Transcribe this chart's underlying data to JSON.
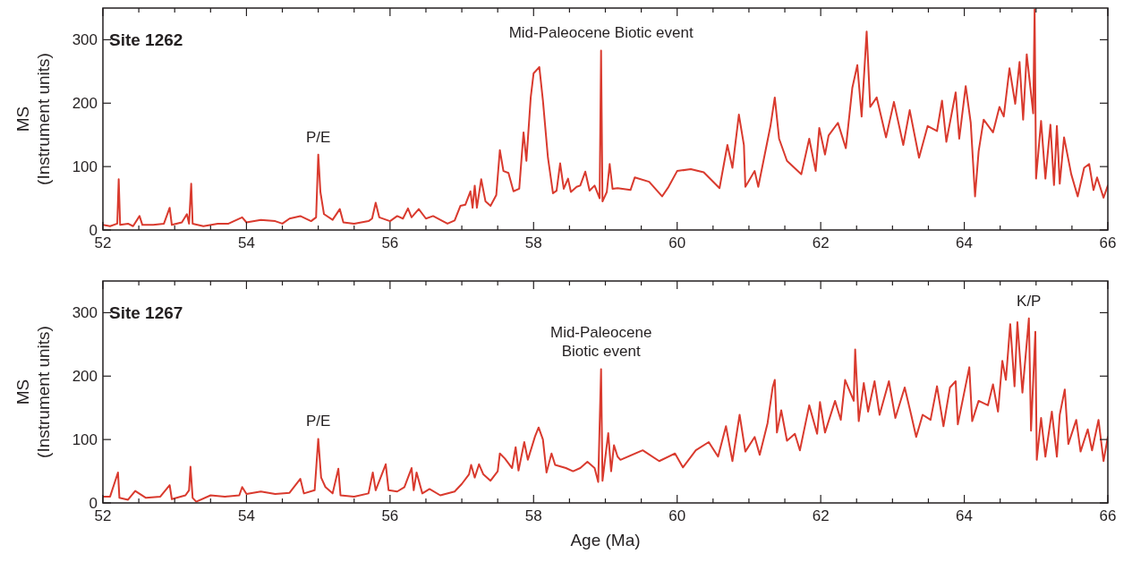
{
  "chart_data": [
    {
      "type": "line",
      "title": "Site 1262",
      "ylabel": "MS\n(Instrument units)",
      "xlim": [
        52,
        66
      ],
      "ylim": [
        0,
        350
      ],
      "xticks": [
        52,
        {
          "value": 52.5,
          "label": null
        },
        {
          "value": 53,
          "label": null
        },
        {
          "value": 53.5,
          "label": null
        },
        54,
        {
          "value": 54.5,
          "label": null
        },
        {
          "value": 55,
          "label": null
        },
        {
          "value": 55.5,
          "label": null
        },
        56,
        {
          "value": 56.5,
          "label": null
        },
        {
          "value": 57,
          "label": null
        },
        {
          "value": 57.5,
          "label": null
        },
        58,
        {
          "value": 58.5,
          "label": null
        },
        {
          "value": 59,
          "label": null
        },
        {
          "value": 59.5,
          "label": null
        },
        60,
        {
          "value": 60.5,
          "label": null
        },
        {
          "value": 61,
          "label": null
        },
        {
          "value": 61.5,
          "label": null
        },
        62,
        {
          "value": 62.5,
          "label": null
        },
        {
          "value": 63,
          "label": null
        },
        {
          "value": 63.5,
          "label": null
        },
        64,
        {
          "value": 64.5,
          "label": null
        },
        {
          "value": 65,
          "label": null
        },
        {
          "value": 65.5,
          "label": null
        },
        66
      ],
      "yticks": [
        0,
        100,
        200,
        300
      ],
      "annotations": [
        {
          "text": "P/E",
          "x": 55.0,
          "y": 119
        },
        {
          "text": "Mid-Paleocene Biotic event",
          "x": 58.94,
          "y": 283
        }
      ],
      "series": [
        {
          "color": "#d93a2e",
          "x": [
            52.0,
            52.1,
            52.2,
            52.22,
            52.24,
            52.35,
            52.42,
            52.51,
            52.55,
            52.7,
            52.85,
            52.93,
            52.96,
            53.1,
            53.17,
            53.2,
            53.23,
            53.25,
            53.4,
            53.6,
            53.75,
            53.94,
            54.0,
            54.2,
            54.4,
            54.5,
            54.6,
            54.75,
            54.9,
            54.97,
            55.0,
            55.03,
            55.08,
            55.2,
            55.3,
            55.35,
            55.5,
            55.7,
            55.75,
            55.8,
            55.85,
            56.0,
            56.1,
            56.18,
            56.25,
            56.3,
            56.4,
            56.5,
            56.6,
            56.8,
            56.9,
            56.98,
            57.05,
            57.12,
            57.15,
            57.18,
            57.21,
            57.27,
            57.33,
            57.4,
            57.48,
            57.53,
            57.58,
            57.65,
            57.72,
            57.8,
            57.86,
            57.9,
            57.96,
            58.0,
            58.08,
            58.13,
            58.2,
            58.27,
            58.32,
            58.37,
            58.42,
            58.48,
            58.52,
            58.6,
            58.65,
            58.72,
            58.78,
            58.85,
            58.92,
            58.94,
            58.96,
            59.02,
            59.06,
            59.1,
            59.17,
            59.35,
            59.41,
            59.61,
            59.79,
            59.88,
            60.0,
            60.19,
            60.37,
            60.59,
            60.7,
            60.77,
            60.86,
            60.93,
            60.95,
            61.08,
            61.13,
            61.22,
            61.3,
            61.36,
            61.42,
            61.53,
            61.73,
            61.84,
            61.93,
            61.98,
            62.06,
            62.11,
            62.24,
            62.35,
            62.44,
            62.51,
            62.57,
            62.64,
            62.69,
            62.78,
            62.91,
            63.02,
            63.15,
            63.24,
            63.37,
            63.49,
            63.62,
            63.69,
            63.75,
            63.88,
            63.93,
            64.02,
            64.09,
            64.15,
            64.2,
            64.27,
            64.4,
            64.49,
            64.55,
            64.63,
            64.71,
            64.77,
            64.82,
            64.87,
            64.96,
            64.98,
            65.0,
            65.07,
            65.13,
            65.2,
            65.25,
            65.29,
            65.33,
            65.39,
            65.49,
            65.58,
            65.67,
            65.74,
            65.8,
            65.85,
            65.94,
            66.0
          ],
          "values": [
            8,
            6,
            10,
            80,
            8,
            10,
            6,
            22,
            8,
            8,
            10,
            35,
            8,
            12,
            25,
            10,
            73,
            10,
            6,
            10,
            10,
            20,
            12,
            16,
            14,
            10,
            18,
            22,
            14,
            20,
            119,
            60,
            25,
            16,
            33,
            12,
            10,
            14,
            18,
            43,
            20,
            14,
            22,
            18,
            34,
            20,
            33,
            18,
            22,
            10,
            15,
            38,
            40,
            61,
            35,
            70,
            35,
            80,
            45,
            38,
            55,
            126,
            93,
            90,
            61,
            65,
            154,
            109,
            209,
            247,
            257,
            204,
            114,
            58,
            62,
            105,
            65,
            81,
            60,
            68,
            70,
            92,
            62,
            70,
            50,
            283,
            45,
            60,
            104,
            65,
            66,
            63,
            83,
            76,
            53,
            68,
            93,
            96,
            91,
            66,
            134,
            98,
            182,
            134,
            68,
            93,
            68,
            119,
            164,
            209,
            144,
            109,
            88,
            144,
            93,
            161,
            119,
            149,
            169,
            129,
            224,
            260,
            179,
            313,
            194,
            209,
            146,
            202,
            134,
            189,
            114,
            164,
            156,
            204,
            139,
            217,
            144,
            227,
            169,
            53,
            124,
            174,
            154,
            194,
            179,
            255,
            199,
            265,
            174,
            277,
            184,
            348,
            81,
            172,
            81,
            166,
            71,
            164,
            73,
            146,
            88,
            53,
            98,
            104,
            63,
            83,
            51,
            70
          ]
        }
      ]
    },
    {
      "type": "line",
      "title": "Site 1267",
      "xlabel": "Age (Ma)",
      "ylabel": "MS\n(Instrument units)",
      "xlim": [
        52,
        66
      ],
      "ylim": [
        0,
        350
      ],
      "xticks": [
        52,
        {
          "value": 52.5,
          "label": null
        },
        {
          "value": 53,
          "label": null
        },
        {
          "value": 53.5,
          "label": null
        },
        54,
        {
          "value": 54.5,
          "label": null
        },
        {
          "value": 55,
          "label": null
        },
        {
          "value": 55.5,
          "label": null
        },
        56,
        {
          "value": 56.5,
          "label": null
        },
        {
          "value": 57,
          "label": null
        },
        {
          "value": 57.5,
          "label": null
        },
        58,
        {
          "value": 58.5,
          "label": null
        },
        {
          "value": 59,
          "label": null
        },
        {
          "value": 59.5,
          "label": null
        },
        60,
        {
          "value": 60.5,
          "label": null
        },
        {
          "value": 61,
          "label": null
        },
        {
          "value": 61.5,
          "label": null
        },
        62,
        {
          "value": 62.5,
          "label": null
        },
        {
          "value": 63,
          "label": null
        },
        {
          "value": 63.5,
          "label": null
        },
        64,
        {
          "value": 64.5,
          "label": null
        },
        {
          "value": 65,
          "label": null
        },
        {
          "value": 65.5,
          "label": null
        },
        66
      ],
      "yticks": [
        0,
        100,
        200,
        300
      ],
      "annotations": [
        {
          "text": "P/E",
          "x": 55.0,
          "y": 101
        },
        {
          "text": "Mid-Paleocene\nBiotic event",
          "x": 58.94,
          "y": 211
        },
        {
          "text": "K/P",
          "x": 64.9,
          "y": 291
        }
      ],
      "series": [
        {
          "color": "#d93a2e",
          "x": [
            52.0,
            52.1,
            52.21,
            52.23,
            52.35,
            52.45,
            52.6,
            52.8,
            52.93,
            52.96,
            53.15,
            53.2,
            53.22,
            53.25,
            53.3,
            53.5,
            53.7,
            53.9,
            53.94,
            54.0,
            54.2,
            54.4,
            54.6,
            54.75,
            54.8,
            54.95,
            55.0,
            55.04,
            55.1,
            55.2,
            55.28,
            55.31,
            55.5,
            55.7,
            55.76,
            55.8,
            55.94,
            55.98,
            56.1,
            56.2,
            56.3,
            56.33,
            56.37,
            56.45,
            56.55,
            56.7,
            56.9,
            57.0,
            57.1,
            57.13,
            57.18,
            57.24,
            57.3,
            57.4,
            57.5,
            57.53,
            57.6,
            57.7,
            57.75,
            57.79,
            57.87,
            57.92,
            58.02,
            58.07,
            58.13,
            58.18,
            58.25,
            58.3,
            58.45,
            58.55,
            58.65,
            58.75,
            58.85,
            58.9,
            58.94,
            58.96,
            59.04,
            59.08,
            59.12,
            59.17,
            59.21,
            59.52,
            59.75,
            59.97,
            60.08,
            60.26,
            60.44,
            60.57,
            60.68,
            60.77,
            60.87,
            60.95,
            61.08,
            61.15,
            61.26,
            61.33,
            61.36,
            61.39,
            61.45,
            61.53,
            61.64,
            61.71,
            61.84,
            61.95,
            61.99,
            62.06,
            62.2,
            62.28,
            62.34,
            62.46,
            62.48,
            62.53,
            62.6,
            62.66,
            62.75,
            62.82,
            62.95,
            63.04,
            63.17,
            63.26,
            63.33,
            63.42,
            63.53,
            63.62,
            63.71,
            63.8,
            63.88,
            63.91,
            64.07,
            64.11,
            64.2,
            64.33,
            64.4,
            64.47,
            64.53,
            64.58,
            64.64,
            64.7,
            64.74,
            64.81,
            64.9,
            64.93,
            64.99,
            65.01,
            65.07,
            65.13,
            65.22,
            65.29,
            65.33,
            65.4,
            65.45,
            65.56,
            65.62,
            65.72,
            65.78,
            65.87,
            65.94,
            66.0
          ],
          "values": [
            10,
            10,
            48,
            8,
            5,
            19,
            8,
            10,
            28,
            6,
            12,
            20,
            57,
            8,
            2,
            12,
            10,
            12,
            25,
            14,
            18,
            14,
            16,
            38,
            15,
            20,
            101,
            40,
            25,
            15,
            54,
            12,
            10,
            15,
            48,
            20,
            61,
            20,
            18,
            25,
            55,
            20,
            48,
            15,
            22,
            12,
            18,
            30,
            45,
            60,
            40,
            61,
            45,
            35,
            50,
            78,
            70,
            55,
            88,
            51,
            96,
            68,
            105,
            119,
            100,
            48,
            78,
            60,
            55,
            50,
            55,
            65,
            55,
            33,
            211,
            35,
            110,
            50,
            91,
            73,
            68,
            83,
            66,
            78,
            56,
            83,
            96,
            73,
            121,
            66,
            139,
            81,
            104,
            76,
            126,
            182,
            194,
            111,
            146,
            98,
            109,
            83,
            154,
            109,
            159,
            111,
            161,
            131,
            194,
            161,
            242,
            129,
            189,
            144,
            192,
            139,
            192,
            134,
            182,
            139,
            104,
            139,
            131,
            184,
            121,
            182,
            192,
            124,
            214,
            129,
            161,
            154,
            187,
            144,
            224,
            194,
            282,
            184,
            285,
            174,
            291,
            114,
            270,
            68,
            134,
            73,
            144,
            73,
            139,
            179,
            93,
            131,
            81,
            116,
            83,
            131,
            66,
            104
          ]
        }
      ]
    }
  ]
}
